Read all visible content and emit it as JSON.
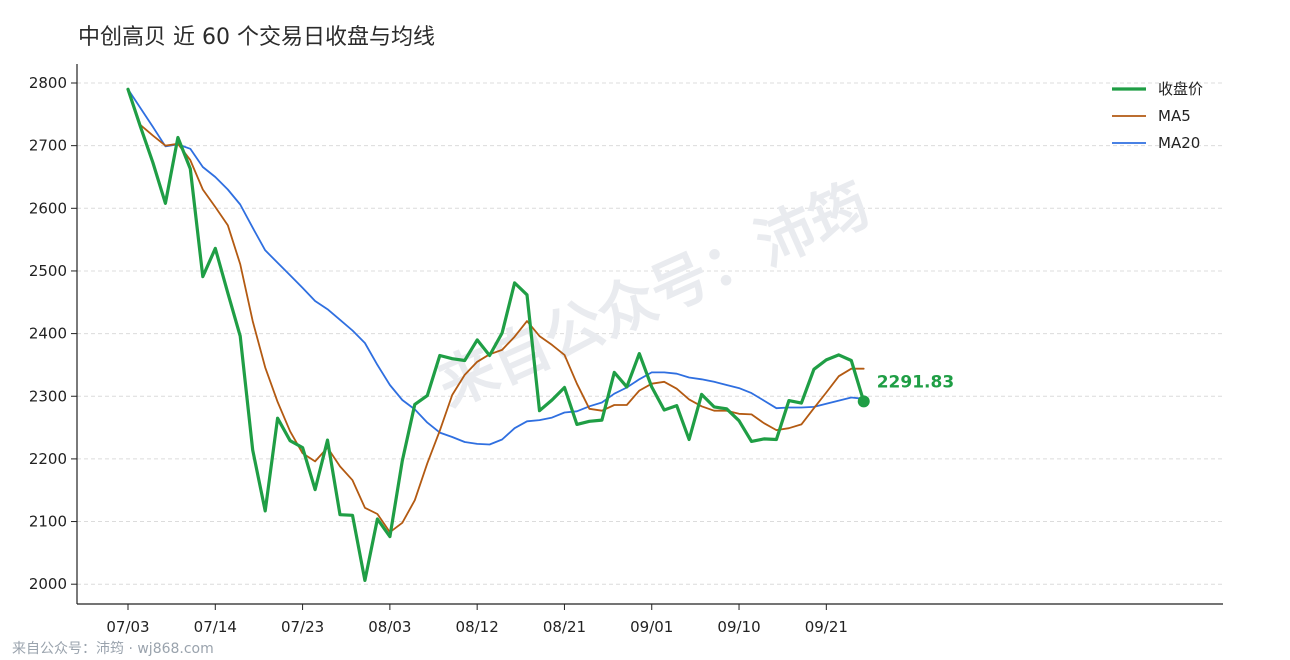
{
  "title": "中创高贝 近 60 个交易日收盘与均线",
  "watermark": "来自公众号：沛筠",
  "footer": "来自公众号：沛筠 · wj868.com",
  "colors": {
    "close": "#1f9e45",
    "ma5": "#b35a12",
    "ma20": "#2f6fe0"
  },
  "chart_data": {
    "type": "line",
    "title": "中创高贝 近 60 个交易日收盘与均线",
    "xlabel": "",
    "ylabel": "",
    "ylim": [
      1985,
      2815
    ],
    "yticks": [
      2000,
      2100,
      2200,
      2300,
      2400,
      2500,
      2600,
      2700,
      2800
    ],
    "xtick_labels": [
      "07/03",
      "07/14",
      "07/23",
      "08/03",
      "08/12",
      "08/21",
      "09/01",
      "09/10",
      "09/21"
    ],
    "xtick_index": [
      0,
      7,
      14,
      21,
      28,
      35,
      42,
      49,
      56
    ],
    "grid": "horizontal-dashed",
    "legend_position": "top-right",
    "last_close_label": "2291.83",
    "series": [
      {
        "name": "收盘价",
        "values": [
          2790,
          2730,
          2673,
          2608,
          2713,
          2663,
          2491,
          2536,
          2465,
          2396,
          2214,
          2117,
          2265,
          2229,
          2218,
          2151,
          2230,
          2111,
          2110,
          2006,
          2104,
          2076,
          2197,
          2287,
          2301,
          2365,
          2360,
          2357,
          2390,
          2365,
          2401,
          2481,
          2462,
          2277,
          2294,
          2314,
          2255,
          2260,
          2262,
          2338,
          2315,
          2368,
          2315,
          2278,
          2285,
          2231,
          2303,
          2283,
          2280,
          2261,
          2228,
          2232,
          2231,
          2293,
          2289,
          2343,
          2358,
          2366,
          2357,
          2291.83
        ]
      },
      {
        "name": "MA5",
        "values": [
          2790,
          2733,
          2716,
          2700,
          2703,
          2677,
          2630,
          2602,
          2573,
          2511,
          2420,
          2346,
          2291,
          2244,
          2209,
          2196,
          2218,
          2188,
          2166,
          2122,
          2112,
          2083,
          2098,
          2134,
          2193,
          2245,
          2302,
          2334,
          2355,
          2367,
          2374,
          2395,
          2420,
          2396,
          2382,
          2366,
          2320,
          2280,
          2277,
          2286,
          2286,
          2309,
          2320,
          2323,
          2312,
          2295,
          2284,
          2277,
          2277,
          2272,
          2271,
          2257,
          2246,
          2249,
          2255,
          2281,
          2306,
          2332,
          2344,
          2344
        ]
      },
      {
        "name": "MA20",
        "values": [
          2790,
          2760,
          2730,
          2699,
          2702,
          2695,
          2666,
          2650,
          2630,
          2606,
          2569,
          2533,
          2513,
          2493,
          2473,
          2452,
          2439,
          2422,
          2405,
          2385,
          2350,
          2318,
          2294,
          2279,
          2258,
          2242,
          2235,
          2227,
          2224,
          2223,
          2231,
          2249,
          2260,
          2262,
          2266,
          2274,
          2276,
          2284,
          2290,
          2304,
          2314,
          2327,
          2338,
          2338,
          2336,
          2330,
          2327,
          2323,
          2318,
          2313,
          2305,
          2293,
          2281,
          2282,
          2282,
          2283,
          2288,
          2293,
          2298,
          2296
        ]
      }
    ]
  }
}
